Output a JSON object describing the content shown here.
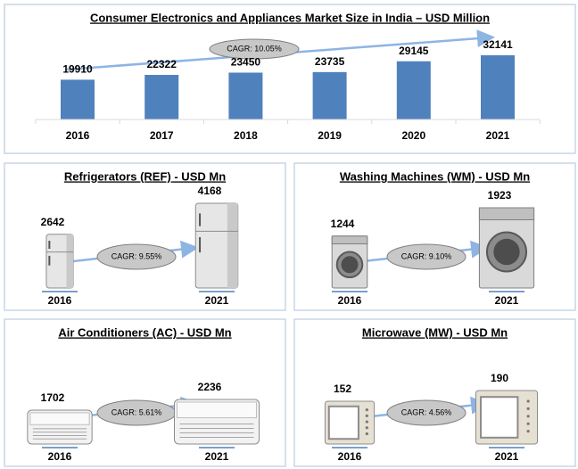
{
  "chart_data": [
    {
      "type": "bar",
      "title": "Consumer Electronics and Appliances Market Size in India – USD Million",
      "categories": [
        "2016",
        "2017",
        "2018",
        "2019",
        "2020",
        "2021"
      ],
      "values": [
        19910,
        22322,
        23450,
        23735,
        29145,
        32141
      ],
      "color": "#4f81bd",
      "annotation": "CAGR: 10.05%"
    },
    {
      "type": "pictogram",
      "title": "Refrigerators (REF) - USD Mn",
      "categories": [
        "2016",
        "2021"
      ],
      "values": [
        2642,
        4168
      ],
      "annotation": "CAGR: 9.55%"
    },
    {
      "type": "pictogram",
      "title": "Washing Machines (WM) - USD Mn",
      "categories": [
        "2016",
        "2021"
      ],
      "values": [
        1244,
        1923
      ],
      "annotation": "CAGR: 9.10%"
    },
    {
      "type": "pictogram",
      "title": "Air Conditioners (AC) - USD Mn",
      "categories": [
        "2016",
        "2021"
      ],
      "values": [
        1702,
        2236
      ],
      "annotation": "CAGR: 5.61%"
    },
    {
      "type": "pictogram",
      "title": "Microwave (MW) - USD Mn",
      "categories": [
        "2016",
        "2021"
      ],
      "values": [
        152,
        190
      ],
      "annotation": "CAGR: 4.56%"
    }
  ]
}
